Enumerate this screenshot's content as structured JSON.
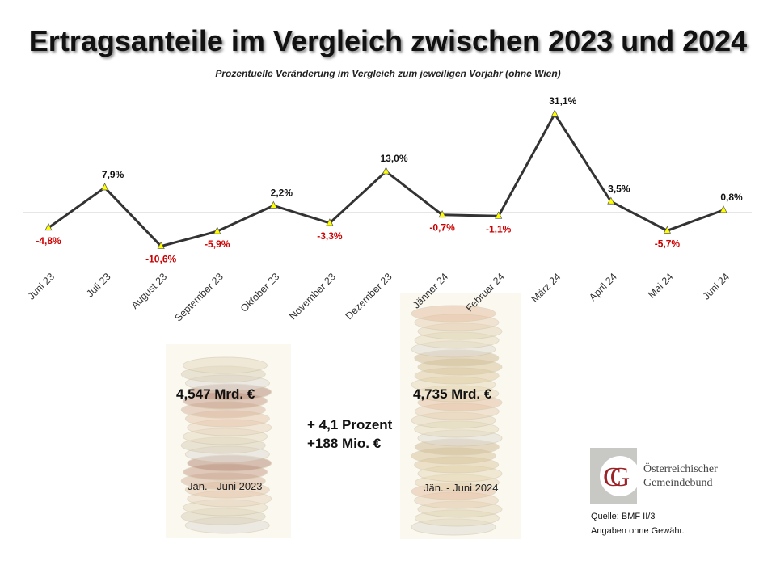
{
  "chart_data": {
    "type": "line",
    "title": "Ertragsanteile im Vergleich zwischen 2023 und 2024",
    "subtitle": "Prozentuelle Veränderung im Vergleich zum jeweiligen Vorjahr (ohne Wien)",
    "categories": [
      "Juni 23",
      "Juli 23",
      "August 23",
      "September 23",
      "Oktober  23",
      "November 23",
      "Dezember 23",
      "Jänner 24",
      "Februar 24",
      "März 24",
      "April 24",
      "Mai 24",
      "Juni 24"
    ],
    "values": [
      -4.8,
      7.9,
      -10.6,
      -5.9,
      2.2,
      -3.3,
      13.0,
      -0.7,
      -1.1,
      31.1,
      3.5,
      -5.7,
      0.8
    ],
    "labels": [
      "-4,8%",
      "7,9%",
      "-10,6%",
      "-5,9%",
      "2,2%",
      "-3,3%",
      "13,0%",
      "-0,7%",
      "-1,1%",
      "31,1%",
      "3,5%",
      "-5,7%",
      "0,8%"
    ],
    "colors": {
      "line": "#333333",
      "marker": "#ffff00",
      "negative": "#cc0000",
      "positive": "#111111"
    }
  },
  "summary": {
    "left_amount": "4,547 Mrd. €",
    "left_period": "Jän. - Juni 2023",
    "right_amount": "4,735 Mrd. €",
    "right_period": "Jän. - Juni 2024",
    "change_percent": "+ 4,1 Prozent",
    "change_abs": "+188 Mio. €"
  },
  "logo": {
    "line1": "Österreichischer",
    "line2": "Gemeindebund"
  },
  "source": {
    "line1": "Quelle: BMF II/3",
    "line2": "Angaben ohne Gewähr."
  }
}
